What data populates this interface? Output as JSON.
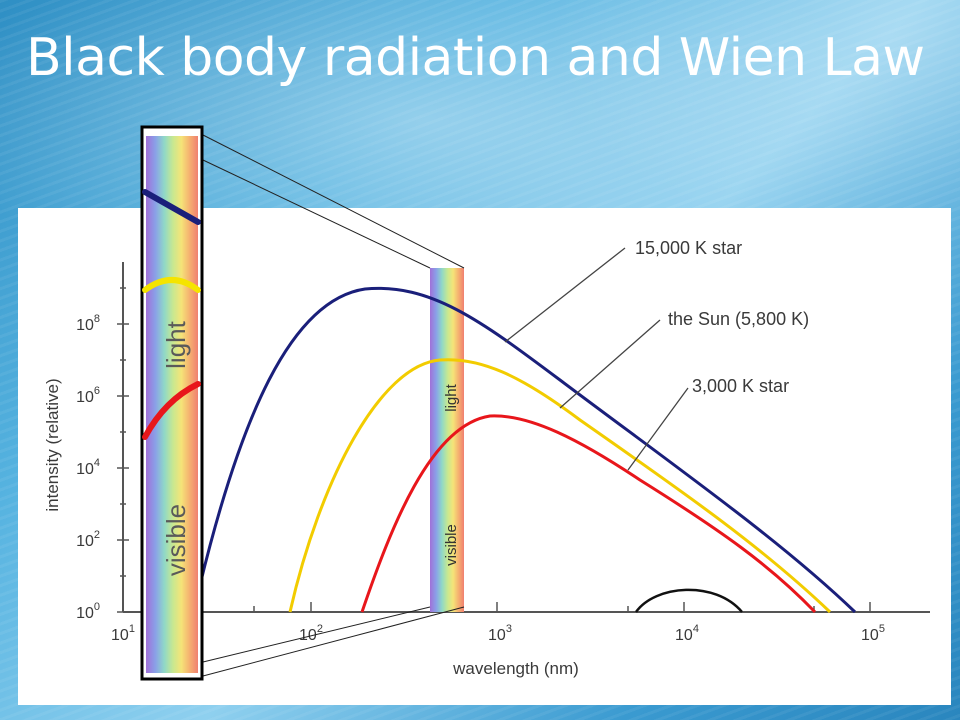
{
  "title": "Black body radiation and Wien Law",
  "chart": {
    "ylabel": "intensity (relative)",
    "xlabel": "wavelength (nm)",
    "y_ticks": [
      {
        "base": "10",
        "exp": "0"
      },
      {
        "base": "10",
        "exp": "2"
      },
      {
        "base": "10",
        "exp": "4"
      },
      {
        "base": "10",
        "exp": "6"
      },
      {
        "base": "10",
        "exp": "8"
      }
    ],
    "x_ticks": [
      {
        "base": "10",
        "exp": "1"
      },
      {
        "base": "10",
        "exp": "2"
      },
      {
        "base": "10",
        "exp": "3"
      },
      {
        "base": "10",
        "exp": "4"
      },
      {
        "base": "10",
        "exp": "5"
      }
    ],
    "curves": [
      {
        "label": "15,000 K star",
        "color": "#1a1f7a"
      },
      {
        "label": "the Sun (5,800 K)",
        "color": "#f2cc00"
      },
      {
        "label": "3,000 K star",
        "color": "#e8161b"
      }
    ],
    "band_words": {
      "visible": "visible",
      "light": "light"
    },
    "colors": {
      "accent_bg": "#3a9ad0",
      "title_text": "#ffffff",
      "panel": "#ffffff"
    }
  }
}
